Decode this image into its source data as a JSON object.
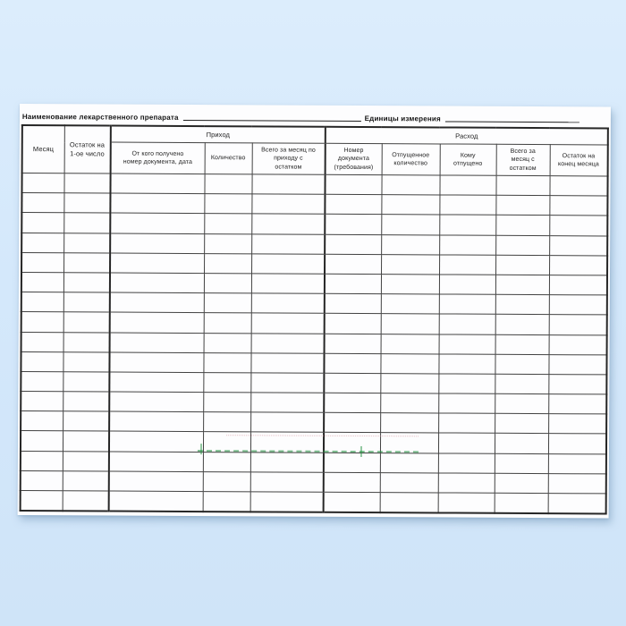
{
  "page": {
    "background_color_top": "#dcedfc",
    "background_color_bottom": "#cfe4f8",
    "paper_color": "#fdfdfe"
  },
  "document": {
    "title_left_label": "Наименование лекарственного препарата",
    "title_right_label": "Единицы измерения",
    "title_left_value": "",
    "title_right_value": "",
    "table": {
      "groups": [
        {
          "label": "Приход"
        },
        {
          "label": "Расход"
        }
      ],
      "columns": [
        {
          "label": "Месяц"
        },
        {
          "label": "Остаток на\n1-ое число"
        },
        {
          "label": "От кого получено\nномер документа, дата"
        },
        {
          "label": "Количество"
        },
        {
          "label": "Всего за месяц по\nприходу с\nостатком"
        },
        {
          "label": "Номер\nдокумента\n(требования)"
        },
        {
          "label": "Отпущенное\nколичество"
        },
        {
          "label": "Кому\nотпущено"
        },
        {
          "label": "Всего за\nмесяц с\nостатком"
        },
        {
          "label": "Остаток на\nконец месяца"
        }
      ],
      "data_row_count": 17,
      "cell_values": []
    },
    "watermark": {
      "green_color": "#289444",
      "pink_color": "#d68e98",
      "legible": false
    }
  }
}
